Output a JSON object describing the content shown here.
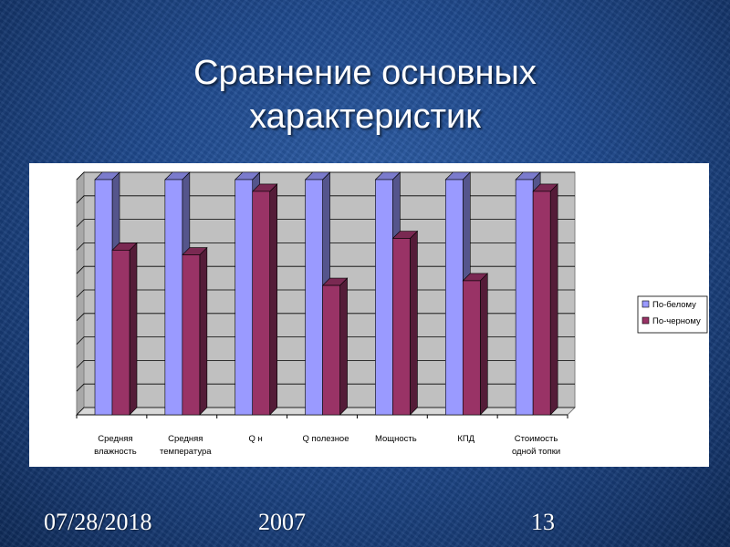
{
  "slide": {
    "title_line1": "Сравнение основных",
    "title_line2": "характеристик"
  },
  "footer": {
    "date": "07/28/2018",
    "year": "2007",
    "page_number": "13"
  },
  "colors": {
    "series_1": "#9a9aff",
    "series_2": "#993366",
    "plot_background": "#c0c0c0"
  },
  "chart_data": {
    "type": "bar",
    "title": "",
    "xlabel": "",
    "ylabel": "",
    "ylim": [
      0,
      10
    ],
    "grid": true,
    "three_d": true,
    "legend_position": "right",
    "categories": [
      [
        "Средняя",
        "влажность"
      ],
      [
        "Средняя",
        "температура"
      ],
      [
        "Q н"
      ],
      [
        "Q полезное"
      ],
      [
        "Мощность"
      ],
      [
        "КПД"
      ],
      [
        "Стоимость",
        "одной топки"
      ]
    ],
    "series": [
      {
        "name": "По-белому",
        "values": [
          10,
          10,
          10,
          10,
          10,
          10,
          10
        ]
      },
      {
        "name": "По-черному",
        "values": [
          7.0,
          6.8,
          9.5,
          5.5,
          7.5,
          5.7,
          9.5
        ]
      }
    ]
  }
}
